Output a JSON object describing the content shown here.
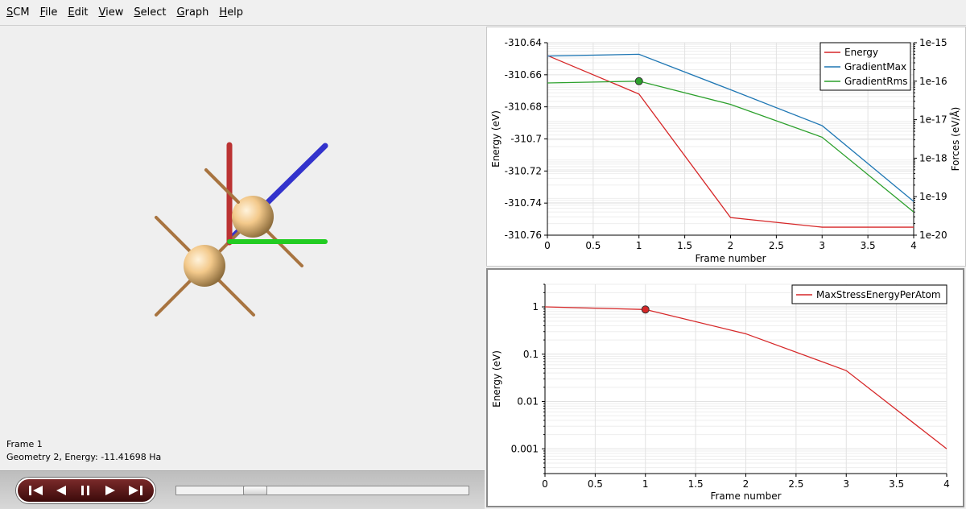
{
  "menubar": {
    "items": [
      "SCM",
      "File",
      "Edit",
      "View",
      "Select",
      "Graph",
      "Help"
    ]
  },
  "viewer": {
    "frame_label": "Frame 1",
    "geometry_label": "Geometry 2, Energy: -11.41698 Ha",
    "axis_colors": {
      "x": "#22cc22",
      "y": "#bb3333",
      "z": "#3333cc"
    },
    "atom_color": "#f3c98b",
    "bond_color": "#c8955a"
  },
  "player": {
    "buttons": [
      "skip-to-start-icon",
      "step-back-icon",
      "pause-icon",
      "play-icon",
      "skip-to-end-icon"
    ],
    "position": 0.25
  },
  "chart_data": [
    {
      "type": "line",
      "xlabel": "Frame number",
      "ylabel": "Energy (eV)",
      "y2label": "Forces (eV/Å)",
      "xlim": [
        0,
        4
      ],
      "ylim": [
        -310.76,
        -310.64
      ],
      "y2lim": [
        1e-20,
        1e-15
      ],
      "y2scale": "log",
      "xticks": [
        "0",
        "0.5",
        "1",
        "1.5",
        "2",
        "2.5",
        "3",
        "3.5",
        "4"
      ],
      "yticks": [
        "-310.64",
        "-310.66",
        "-310.68",
        "-310.7",
        "-310.72",
        "-310.74",
        "-310.76"
      ],
      "y2ticks": [
        "1e-15",
        "1e-16",
        "1e-17",
        "1e-18",
        "1e-19",
        "1e-20"
      ],
      "legend_position": "top-right",
      "x": [
        0,
        1,
        2,
        3,
        4
      ],
      "series": [
        {
          "name": "Energy",
          "axis": "left",
          "color": "#d62728",
          "values": [
            -310.648,
            -310.672,
            -310.749,
            -310.755,
            -310.755
          ]
        },
        {
          "name": "GradientMax",
          "axis": "right",
          "color": "#1f77b4",
          "values": [
            4.5e-16,
            5e-16,
            6e-17,
            7e-18,
            7.5e-20
          ]
        },
        {
          "name": "GradientRms",
          "axis": "right",
          "color": "#2ca02c",
          "values": [
            9e-17,
            1e-16,
            2.5e-17,
            3.5e-18,
            4e-20
          ]
        }
      ],
      "marker": {
        "x": 1,
        "series": "GradientRms",
        "color": "#2ca02c"
      }
    },
    {
      "type": "line",
      "xlabel": "Frame number",
      "ylabel": "Energy (eV)",
      "xlim": [
        0,
        4
      ],
      "ylim": [
        0.0003,
        3
      ],
      "yscale": "log",
      "xticks": [
        "0",
        "0.5",
        "1",
        "1.5",
        "2",
        "2.5",
        "3",
        "3.5",
        "4"
      ],
      "yticks": [
        "1",
        "0.1",
        "0.01",
        "0.001"
      ],
      "legend_position": "top-right",
      "x": [
        0,
        1,
        2,
        3,
        4
      ],
      "series": [
        {
          "name": "MaxStressEnergyPerAtom",
          "color": "#d62728",
          "values": [
            1.0,
            0.88,
            0.27,
            0.045,
            0.001
          ]
        }
      ],
      "marker": {
        "x": 1,
        "series": "MaxStressEnergyPerAtom",
        "color": "#d62728"
      }
    }
  ]
}
